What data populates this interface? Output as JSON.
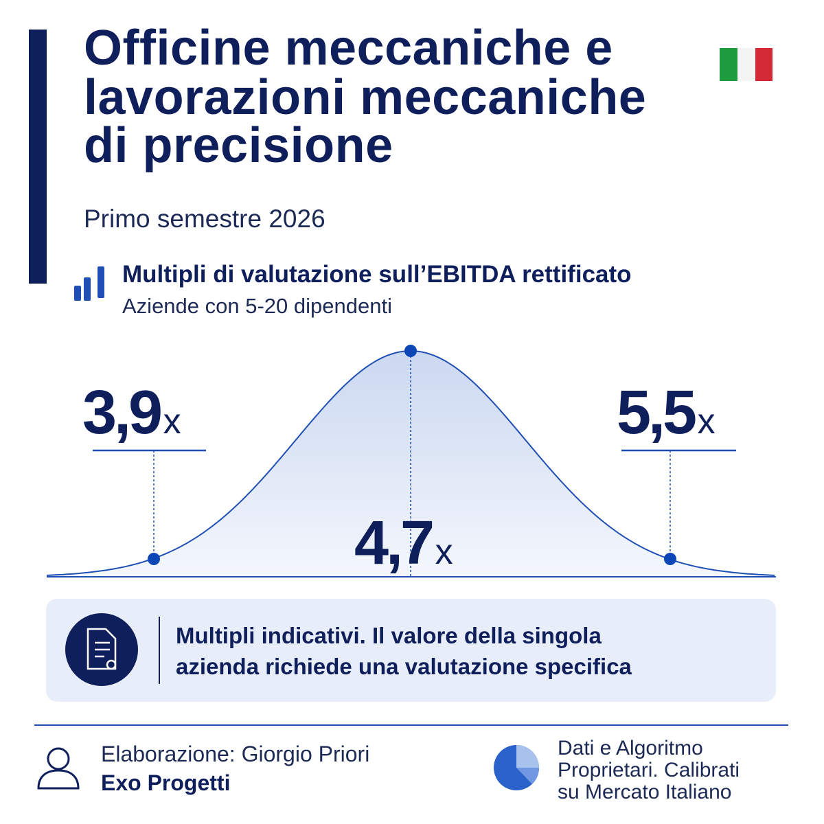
{
  "header": {
    "title_lines": [
      "Officine meccaniche e",
      "lavorazioni meccaniche",
      "di precisione"
    ],
    "subtitle": "Primo semestre 2026"
  },
  "section": {
    "title": "Multipli di valutazione sull’EBITDA rettificato",
    "subtitle": "Aziende con 5-20 dipendenti"
  },
  "multiples": {
    "unit": "x",
    "low": "3,9",
    "median": "4,7",
    "high": "5,5"
  },
  "note": {
    "lines": [
      "Multipli indicativi. Il valore della singola",
      "azienda richiede una valutazione specifica"
    ]
  },
  "footer": {
    "author": "Elaborazione: Giorgio Priori",
    "company": "Exo Progetti",
    "source_lines": [
      "Dati e Algoritmo",
      "Proprietari. Calibrati",
      "su Mercato Italiano"
    ]
  }
}
